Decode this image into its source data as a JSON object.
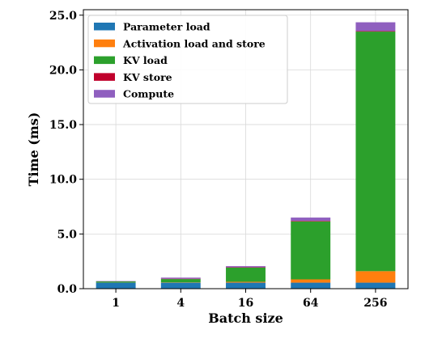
{
  "chart_data": {
    "type": "bar",
    "stacked": true,
    "title": "",
    "xlabel": "Batch size",
    "ylabel": "Time (ms)",
    "categories": [
      "1",
      "4",
      "16",
      "64",
      "256"
    ],
    "ylim": [
      0,
      25.5
    ],
    "yticks": [
      "0.0",
      "5.0",
      "10.0",
      "15.0",
      "20.0",
      "25.0"
    ],
    "grid": true,
    "legend_position": "top-left",
    "series": [
      {
        "name": "Parameter load",
        "color": "#1f77b4",
        "values": [
          0.55,
          0.55,
          0.55,
          0.55,
          0.55
        ]
      },
      {
        "name": "Activation load and store",
        "color": "#ff7f0e",
        "values": [
          0.01,
          0.03,
          0.08,
          0.3,
          1.05
        ]
      },
      {
        "name": "KV load",
        "color": "#2ca02c",
        "values": [
          0.1,
          0.3,
          1.3,
          5.3,
          21.9
        ]
      },
      {
        "name": "KV store",
        "color": "#c0002c",
        "values": [
          0.01,
          0.03,
          0.03,
          0.05,
          0.05
        ]
      },
      {
        "name": "Compute",
        "color": "#8f5fbf",
        "values": [
          0.03,
          0.1,
          0.1,
          0.3,
          0.8
        ]
      }
    ]
  }
}
